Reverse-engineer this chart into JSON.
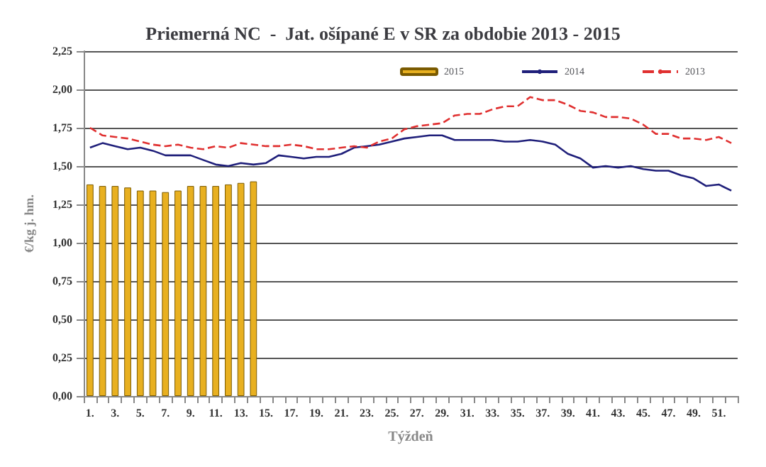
{
  "chart_data": {
    "type": "bar",
    "title": "Priemerná NC  -  Jat. ošípané E v SR za obdobie 2013 - 2015",
    "xlabel": "Týždeň",
    "ylabel": "€/kg j. hm.",
    "categories": [
      "1.",
      null,
      "3.",
      null,
      "5.",
      null,
      "7.",
      null,
      "9.",
      null,
      "11.",
      null,
      "13.",
      null,
      "15.",
      null,
      "17.",
      null,
      "19.",
      null,
      "21.",
      null,
      "23.",
      null,
      "25.",
      null,
      "27.",
      null,
      "29.",
      null,
      "31.",
      null,
      "33.",
      null,
      "35.",
      null,
      "37.",
      null,
      "39.",
      null,
      "41.",
      null,
      "43.",
      null,
      "45.",
      null,
      "47.",
      null,
      "49.",
      null,
      "51.",
      null
    ],
    "series": [
      {
        "name": "2015",
        "color": "#e8b020",
        "values": [
          1.38,
          1.37,
          1.37,
          1.36,
          1.34,
          1.34,
          1.33,
          1.34,
          1.37,
          1.37,
          1.37,
          1.38,
          1.39,
          1.4,
          null,
          null,
          null,
          null,
          null,
          null,
          null,
          null,
          null,
          null,
          null,
          null,
          null,
          null,
          null,
          null,
          null,
          null,
          null,
          null,
          null,
          null,
          null,
          null,
          null,
          null,
          null,
          null,
          null,
          null,
          null,
          null,
          null,
          null,
          null,
          null,
          null,
          null
        ]
      },
      {
        "name": "2014",
        "type": "line",
        "color": "#1f1f7a",
        "line_style": "solid",
        "values": [
          1.62,
          1.65,
          1.63,
          1.61,
          1.62,
          1.6,
          1.57,
          1.57,
          1.57,
          1.54,
          1.51,
          1.5,
          1.52,
          1.51,
          1.52,
          1.57,
          1.56,
          1.55,
          1.56,
          1.56,
          1.58,
          1.62,
          1.63,
          1.64,
          1.66,
          1.68,
          1.69,
          1.7,
          1.7,
          1.67,
          1.67,
          1.67,
          1.67,
          1.66,
          1.66,
          1.67,
          1.66,
          1.64,
          1.58,
          1.55,
          1.49,
          1.5,
          1.49,
          1.5,
          1.48,
          1.47,
          1.47,
          1.44,
          1.42,
          1.37,
          1.38,
          1.34
        ]
      },
      {
        "name": "2013",
        "type": "line",
        "color": "#e03030",
        "line_style": "dashed",
        "values": [
          1.75,
          1.7,
          1.69,
          1.68,
          1.66,
          1.64,
          1.63,
          1.64,
          1.62,
          1.61,
          1.63,
          1.62,
          1.65,
          1.64,
          1.63,
          1.63,
          1.64,
          1.63,
          1.61,
          1.61,
          1.62,
          1.63,
          1.62,
          1.66,
          1.68,
          1.74,
          1.76,
          1.77,
          1.78,
          1.83,
          1.84,
          1.84,
          1.87,
          1.89,
          1.89,
          1.95,
          1.93,
          1.93,
          1.9,
          1.86,
          1.85,
          1.82,
          1.82,
          1.81,
          1.77,
          1.71,
          1.71,
          1.68,
          1.68,
          1.67,
          1.69,
          1.65
        ]
      }
    ],
    "ylim": [
      0,
      2.25
    ],
    "yticks": [
      {
        "value": 0,
        "label": "0,00"
      },
      {
        "value": 0.25,
        "label": "0,25"
      },
      {
        "value": 0.5,
        "label": "0,50"
      },
      {
        "value": 0.75,
        "label": "0,75"
      },
      {
        "value": 1,
        "label": "1,00"
      },
      {
        "value": 1.25,
        "label": "1,25"
      },
      {
        "value": 1.5,
        "label": "1,50"
      },
      {
        "value": 1.75,
        "label": "1,75"
      },
      {
        "value": 2,
        "label": "2,00"
      },
      {
        "value": 2.25,
        "label": "2,25"
      }
    ],
    "grid": "y",
    "legend": "top right",
    "marker": "none"
  }
}
